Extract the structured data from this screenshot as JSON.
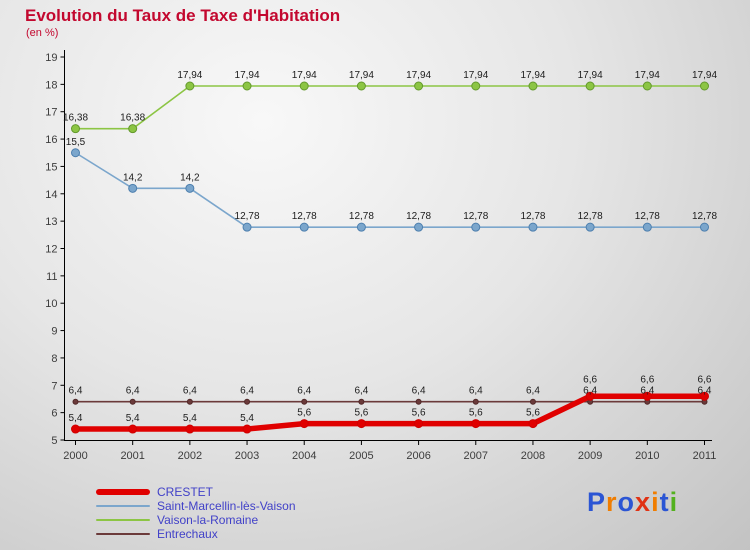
{
  "header": {
    "title": "Evolution du Taux de Taxe d'Habitation",
    "subtitle": "(en %)"
  },
  "chart_data": {
    "type": "line",
    "title": "Evolution du Taux de Taxe d'Habitation",
    "subtitle": "(en %)",
    "x": [
      2000,
      2001,
      2002,
      2003,
      2004,
      2005,
      2006,
      2007,
      2008,
      2009,
      2010,
      2011
    ],
    "ylim": [
      5,
      19
    ],
    "yticks": [
      5,
      6,
      7,
      8,
      9,
      10,
      11,
      12,
      13,
      14,
      15,
      16,
      17,
      18,
      19
    ],
    "grid": false,
    "legend_position": "bottom-left",
    "decimal_separator": ",",
    "series": [
      {
        "name": "CRESTET",
        "color": "#e00000",
        "line_width": 5.5,
        "marker_radius": 4,
        "marker_stroke": "#d00000",
        "values": [
          5.4,
          5.4,
          5.4,
          5.4,
          5.6,
          5.6,
          5.6,
          5.6,
          5.6,
          6.6,
          6.6,
          6.6
        ]
      },
      {
        "name": "Saint-Marcellin-lès-Vaison",
        "color": "#7ba6cc",
        "line_width": 1.6,
        "marker_radius": 4,
        "marker_stroke": "#4d7fae",
        "values": [
          15.5,
          14.2,
          14.2,
          12.78,
          12.78,
          12.78,
          12.78,
          12.78,
          12.78,
          12.78,
          12.78,
          12.78
        ]
      },
      {
        "name": "Vaison-la-Romaine",
        "color": "#8cc544",
        "line_width": 1.6,
        "marker_radius": 4,
        "marker_stroke": "#63992c",
        "values": [
          16.38,
          16.38,
          17.94,
          17.94,
          17.94,
          17.94,
          17.94,
          17.94,
          17.94,
          17.94,
          17.94,
          17.94
        ]
      },
      {
        "name": "Entrechaux",
        "color": "#6b3a3a",
        "line_width": 1.6,
        "marker_radius": 2.5,
        "marker_stroke": "#502828",
        "values": [
          6.4,
          6.4,
          6.4,
          6.4,
          6.4,
          6.4,
          6.4,
          6.4,
          6.4,
          6.4,
          6.4,
          6.4
        ]
      }
    ]
  },
  "logo": {
    "text": "Proxiti",
    "letters": [
      {
        "char": "P",
        "color": "#2b55d4"
      },
      {
        "char": "r",
        "color": "#f07d00"
      },
      {
        "char": "o",
        "color": "#2b55d4"
      },
      {
        "char": "x",
        "color": "#e03214"
      },
      {
        "char": "i",
        "color": "#f07d00"
      },
      {
        "char": "t",
        "color": "#2b55d4"
      },
      {
        "char": "i",
        "color": "#53b11e"
      }
    ]
  }
}
